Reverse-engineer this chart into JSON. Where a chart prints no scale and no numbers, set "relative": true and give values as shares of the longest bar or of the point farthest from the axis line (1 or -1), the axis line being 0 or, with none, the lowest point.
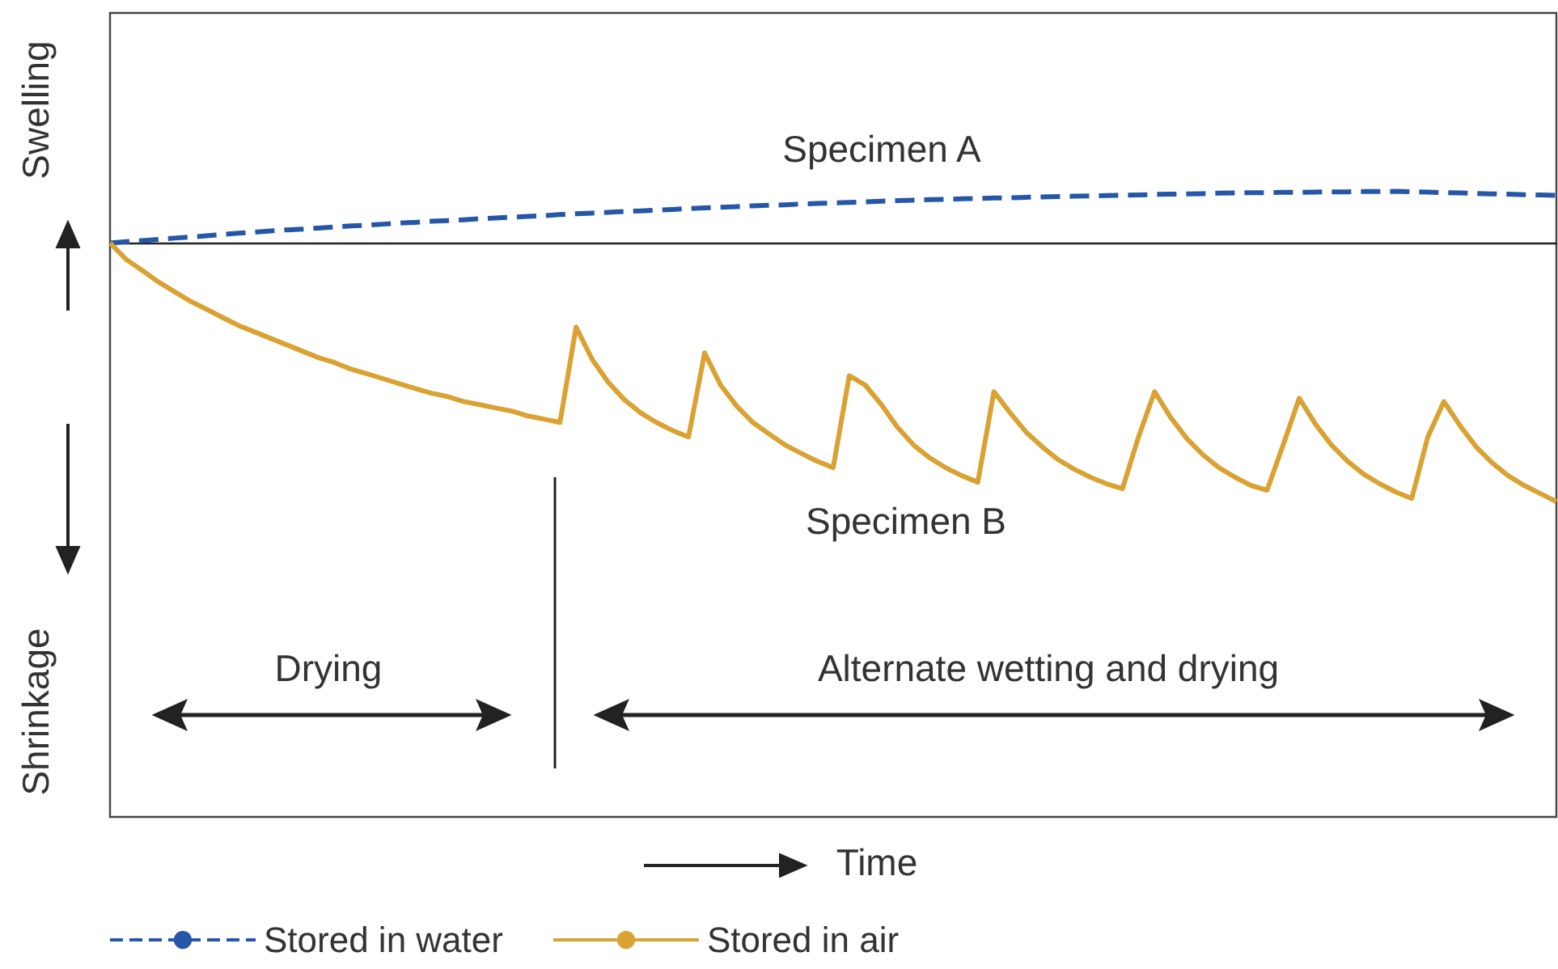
{
  "chart_data": {
    "type": "line",
    "relative": true,
    "tick_labels": false,
    "marker": "none",
    "legend": "bottom left",
    "annotations": [
      "Specimen A",
      "Specimen B",
      "Drying",
      "Alternate wetting and drying",
      "Swelling",
      "Shrinkage",
      "Time"
    ],
    "categories": [
      null,
      null,
      null,
      null,
      null,
      null,
      null,
      null,
      null,
      null,
      null,
      null,
      null,
      null,
      null,
      null,
      null,
      null,
      null,
      null,
      null,
      null,
      null,
      null,
      null,
      null,
      null,
      null,
      null,
      null,
      null,
      null,
      null,
      null,
      null,
      null,
      null,
      null,
      null,
      null,
      null,
      null,
      null,
      null,
      null,
      null,
      null,
      null,
      null,
      null,
      null,
      null,
      null,
      null,
      null,
      null,
      null,
      null,
      null,
      null,
      null,
      null,
      null,
      null,
      null,
      null,
      null,
      null,
      null,
      null,
      null,
      null,
      null,
      null,
      null,
      null,
      null,
      null,
      null,
      null,
      null,
      null,
      null,
      null,
      null,
      null,
      null,
      null,
      null,
      null,
      null
    ],
    "series": [
      {
        "name": "Stored in water",
        "color": "#2556a8",
        "line_style": "dashed",
        "values": [
          0,
          0.005,
          0.009,
          0.014,
          0.019,
          0.023,
          0.028,
          0.033,
          0.038,
          0.042,
          0.047,
          0.051,
          0.054,
          0.058,
          0.062,
          0.066,
          0.069,
          0.073,
          0.077,
          0.08,
          0.084,
          0.087,
          0.09,
          0.094,
          0.097,
          0.1,
          0.103,
          0.106,
          0.11,
          0.113,
          0.116,
          0.119,
          0.122,
          0.124,
          0.127,
          0.13,
          0.133,
          0.136,
          0.138,
          0.141,
          0.144,
          0.146,
          0.148,
          0.151,
          0.153,
          0.155,
          0.157,
          0.159,
          0.162,
          0.164,
          0.166,
          0.168,
          0.169,
          0.171,
          0.172,
          0.174,
          0.175,
          0.177,
          0.178,
          0.18,
          0.181,
          0.182,
          0.184,
          0.185,
          0.186,
          0.188,
          0.189,
          0.19,
          0.191,
          0.193,
          0.194,
          0.195,
          0.195,
          0.196,
          0.196,
          0.197,
          0.198,
          0.198,
          0.199,
          0.199,
          0.2,
          0.198,
          0.197,
          0.195,
          0.194,
          0.192,
          0.19,
          0.189,
          0.187,
          0.186,
          0.184
        ]
      },
      {
        "name": "Stored in air",
        "color": "#d9a232",
        "line_style": "solid",
        "values": [
          0,
          -0.063,
          -0.106,
          -0.15,
          -0.188,
          -0.225,
          -0.256,
          -0.288,
          -0.319,
          -0.344,
          -0.369,
          -0.394,
          -0.419,
          -0.444,
          -0.463,
          -0.488,
          -0.506,
          -0.525,
          -0.544,
          -0.563,
          -0.581,
          -0.594,
          -0.613,
          -0.625,
          -0.638,
          -0.65,
          -0.669,
          -0.681,
          -0.694,
          -0.325,
          -0.45,
          -0.538,
          -0.606,
          -0.656,
          -0.694,
          -0.725,
          -0.75,
          -0.425,
          -0.55,
          -0.631,
          -0.694,
          -0.738,
          -0.781,
          -0.813,
          -0.844,
          -0.869,
          -0.513,
          -0.55,
          -0.625,
          -0.713,
          -0.781,
          -0.831,
          -0.869,
          -0.9,
          -0.925,
          -0.575,
          -0.656,
          -0.731,
          -0.788,
          -0.838,
          -0.875,
          -0.906,
          -0.931,
          -0.95,
          -0.75,
          -0.575,
          -0.675,
          -0.756,
          -0.819,
          -0.869,
          -0.906,
          -0.938,
          -0.956,
          -0.781,
          -0.6,
          -0.7,
          -0.781,
          -0.844,
          -0.894,
          -0.931,
          -0.963,
          -0.988,
          -0.75,
          -0.613,
          -0.706,
          -0.788,
          -0.85,
          -0.9,
          -0.938,
          -0.969,
          -1
        ]
      }
    ]
  }
}
